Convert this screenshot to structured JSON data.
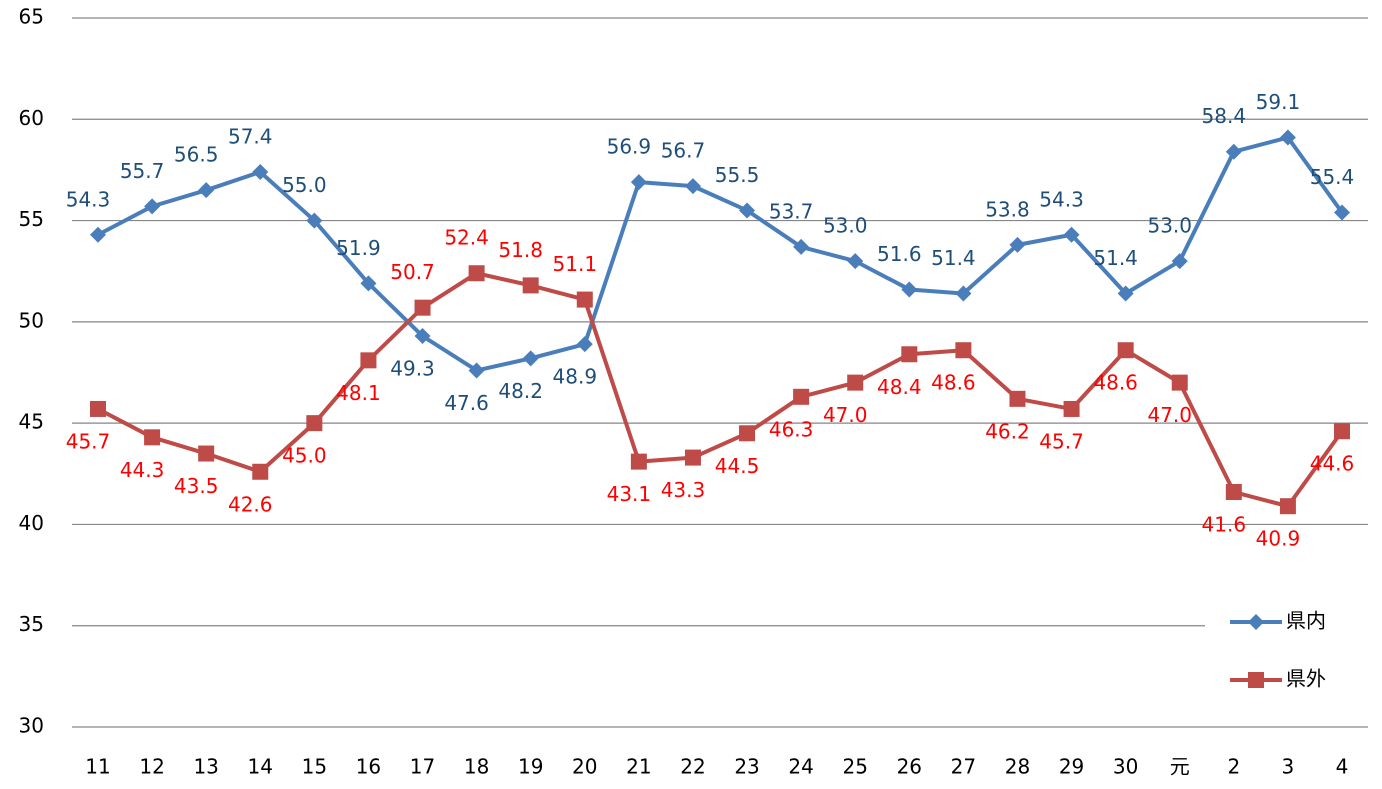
{
  "chart_data": {
    "type": "line",
    "categories": [
      "11",
      "12",
      "13",
      "14",
      "15",
      "16",
      "17",
      "18",
      "19",
      "20",
      "21",
      "22",
      "23",
      "24",
      "25",
      "26",
      "27",
      "28",
      "29",
      "30",
      "元",
      "2",
      "3",
      "4"
    ],
    "series": [
      {
        "name": "県内",
        "color": "#4a7ebb",
        "label_color": "#1f4e79",
        "marker": "diamond",
        "values": [
          54.3,
          55.7,
          56.5,
          57.4,
          55.0,
          51.9,
          49.3,
          47.6,
          48.2,
          48.9,
          56.9,
          56.7,
          55.5,
          53.7,
          53.0,
          51.6,
          51.4,
          53.8,
          54.3,
          51.4,
          53.0,
          58.4,
          59.1,
          55.4
        ],
        "value_labels": [
          "54.3",
          "55.7",
          "56.5",
          "57.4",
          "55.0",
          "51.9",
          "49.3",
          "47.6",
          "48.2",
          "48.9",
          "56.9",
          "56.7",
          "55.5",
          "53.7",
          "53.0",
          "51.6",
          "51.4",
          "53.8",
          "54.3",
          "51.4",
          "53.0",
          "58.4",
          "59.1",
          "55.4"
        ]
      },
      {
        "name": "県外",
        "color": "#be4b48",
        "label_color": "#ff0000",
        "marker": "square",
        "values": [
          45.7,
          44.3,
          43.5,
          42.6,
          45.0,
          48.1,
          50.7,
          52.4,
          51.8,
          51.1,
          43.1,
          43.3,
          44.5,
          46.3,
          47.0,
          48.4,
          48.6,
          46.2,
          45.7,
          48.6,
          47.0,
          41.6,
          40.9,
          44.6
        ],
        "value_labels": [
          "45.7",
          "44.3",
          "43.5",
          "42.6",
          "45.0",
          "48.1",
          "50.7",
          "52.4",
          "51.8",
          "51.1",
          "43.1",
          "43.3",
          "44.5",
          "46.3",
          "47.0",
          "48.4",
          "48.6",
          "46.2",
          "45.7",
          "48.6",
          "47.0",
          "41.6",
          "40.9",
          "44.6"
        ]
      }
    ],
    "ylim": [
      30,
      65
    ],
    "yticks": [
      30,
      35,
      40,
      45,
      50,
      55,
      60,
      65
    ],
    "grid": true,
    "legend": "lower right"
  }
}
